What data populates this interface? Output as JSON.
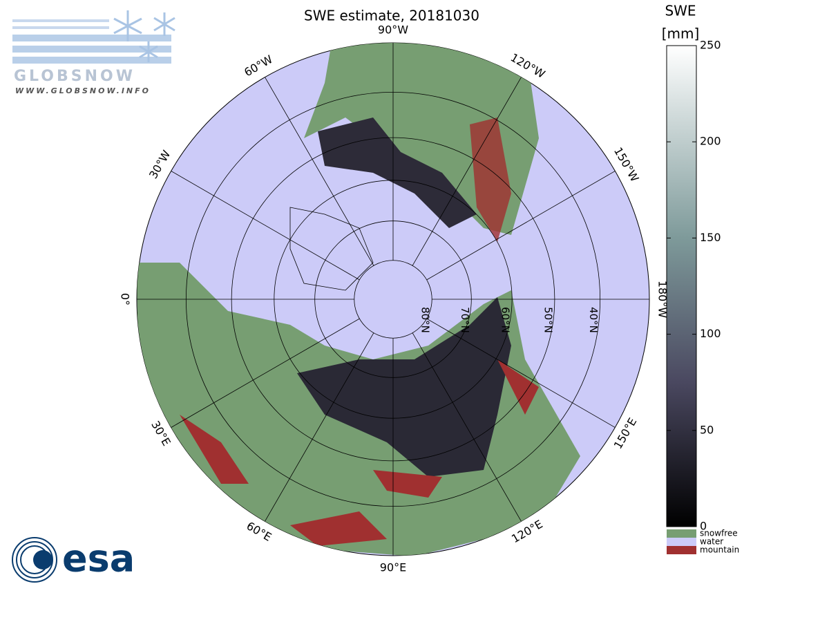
{
  "title": "SWE estimate, 20181030",
  "logos": {
    "globsnow": "GLOBSNOW",
    "globsnow_url": "WWW.GLOBSNOW.INFO",
    "esa": "esa"
  },
  "map": {
    "longitude_labels": [
      {
        "lon": 90,
        "label": "90°E"
      },
      {
        "lon": 120,
        "label": "120°E"
      },
      {
        "lon": 150,
        "label": "150°E"
      },
      {
        "lon": 180,
        "label": "180°W"
      },
      {
        "lon": -150,
        "label": "150°W"
      },
      {
        "lon": -120,
        "label": "120°W"
      },
      {
        "lon": -90,
        "label": "90°W"
      },
      {
        "lon": -60,
        "label": "60°W"
      },
      {
        "lon": -30,
        "label": "30°W"
      },
      {
        "lon": 0,
        "label": "0°"
      },
      {
        "lon": 30,
        "label": "30°E"
      },
      {
        "lon": 60,
        "label": "60°E"
      }
    ],
    "latitude_labels": [
      {
        "lat": 80,
        "label": "80°N"
      },
      {
        "lat": 70,
        "label": "70°N"
      },
      {
        "lat": 60,
        "label": "60°N"
      },
      {
        "lat": 50,
        "label": "50°N"
      },
      {
        "lat": 40,
        "label": "40°N"
      }
    ],
    "edge_lat": 30
  },
  "colorbar": {
    "label": "SWE",
    "unit": "[mm]",
    "range": [
      0,
      250
    ],
    "ticks": [
      0,
      50,
      100,
      150,
      200,
      250
    ],
    "classes": [
      {
        "name": "snowfree",
        "color": "#779e72"
      },
      {
        "name": "water",
        "color": "#cccbf8"
      },
      {
        "name": "mountain",
        "color": "#a03030"
      }
    ]
  }
}
